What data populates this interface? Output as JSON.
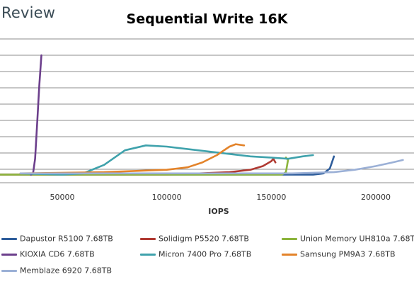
{
  "brand": "Review",
  "chart_data": {
    "type": "line",
    "title": "Sequential Write 16K",
    "xlabel": "IOPS",
    "ylabel": "",
    "xlim": [
      20000,
      220000
    ],
    "ylim": [
      0,
      1
    ],
    "x_ticks": [
      50000,
      100000,
      150000,
      200000
    ],
    "x_tick_labels": [
      "50000",
      "100000",
      "150000",
      "200000"
    ],
    "grid": "horizontal",
    "legend_position": "bottom",
    "series": [
      {
        "name": "Dapustor R5100 7.68TB",
        "color": "#2E5D9B",
        "x": [
          20000,
          60000,
          100000,
          140000,
          170000,
          175000,
          178000,
          179000,
          180000
        ],
        "y": [
          0.02,
          0.02,
          0.02,
          0.02,
          0.02,
          0.03,
          0.07,
          0.12,
          0.17
        ]
      },
      {
        "name": "Solidigm P5520 7.68TB",
        "color": "#B03A32",
        "x": [
          20000,
          60000,
          100000,
          130000,
          140000,
          146000,
          150000,
          151000,
          152000
        ],
        "y": [
          0.02,
          0.02,
          0.02,
          0.04,
          0.06,
          0.09,
          0.13,
          0.15,
          0.12
        ]
      },
      {
        "name": "Union Memory UH810a 7.68TB",
        "color": "#8CB43C",
        "x": [
          20000,
          60000,
          100000,
          140000,
          155000,
          157000,
          157500,
          158000,
          157000
        ],
        "y": [
          0.02,
          0.02,
          0.02,
          0.02,
          0.02,
          0.04,
          0.09,
          0.14,
          0.16
        ]
      },
      {
        "name": "KIOXIA CD6 7.68TB",
        "color": "#6C3F8C",
        "x": [
          35000,
          36000,
          37000,
          38000,
          39000,
          40000
        ],
        "y": [
          0.02,
          0.03,
          0.15,
          0.45,
          0.75,
          1.0
        ]
      },
      {
        "name": "Micron 7400 Pro 7.68TB",
        "color": "#3FA2AC",
        "x": [
          30000,
          50000,
          60000,
          70000,
          80000,
          90000,
          100000,
          120000,
          140000,
          150000,
          158000,
          165000,
          170000
        ],
        "y": [
          0.03,
          0.02,
          0.03,
          0.1,
          0.22,
          0.26,
          0.25,
          0.21,
          0.17,
          0.16,
          0.15,
          0.17,
          0.18
        ]
      },
      {
        "name": "Samsung PM9A3 7.68TB",
        "color": "#E3832A",
        "x": [
          30000,
          70000,
          100000,
          110000,
          117000,
          124000,
          130000,
          133000,
          137000
        ],
        "y": [
          0.03,
          0.04,
          0.06,
          0.08,
          0.12,
          0.18,
          0.25,
          0.27,
          0.26
        ]
      },
      {
        "name": "Memblaze 6920 7.68TB",
        "color": "#9BB0D6",
        "x": [
          30000,
          100000,
          160000,
          180000,
          190000,
          200000,
          208000,
          213000
        ],
        "y": [
          0.03,
          0.03,
          0.03,
          0.04,
          0.06,
          0.09,
          0.12,
          0.14
        ]
      }
    ]
  }
}
